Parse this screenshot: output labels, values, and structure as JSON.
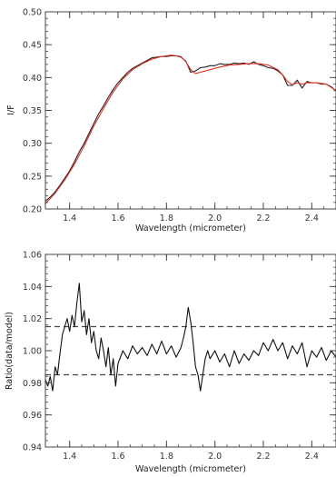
{
  "chart_data": [
    {
      "type": "line",
      "xlabel": "Wavelength (micrometer)",
      "ylabel": "I/F",
      "xlim": [
        1.3,
        2.5
      ],
      "ylim": [
        0.2,
        0.5
      ],
      "xticks": [
        "1.4",
        "1.6",
        "1.8",
        "2.0",
        "2.2",
        "2.4"
      ],
      "yticks": [
        "0.20",
        "0.25",
        "0.30",
        "0.35",
        "0.40",
        "0.45",
        "0.50"
      ],
      "grid": false,
      "series": [
        {
          "color": "#222222",
          "x": [
            1.3,
            1.32,
            1.34,
            1.36,
            1.38,
            1.4,
            1.42,
            1.44,
            1.46,
            1.48,
            1.5,
            1.52,
            1.54,
            1.56,
            1.58,
            1.6,
            1.62,
            1.64,
            1.66,
            1.68,
            1.7,
            1.72,
            1.74,
            1.76,
            1.78,
            1.8,
            1.82,
            1.84,
            1.86,
            1.88,
            1.9,
            1.92,
            1.94,
            1.96,
            1.98,
            2.0,
            2.02,
            2.04,
            2.06,
            2.08,
            2.1,
            2.12,
            2.14,
            2.16,
            2.18,
            2.2,
            2.22,
            2.24,
            2.26,
            2.28,
            2.3,
            2.32,
            2.34,
            2.36,
            2.38,
            2.4,
            2.42,
            2.44,
            2.46,
            2.48,
            2.5
          ],
          "values": [
            0.212,
            0.218,
            0.226,
            0.236,
            0.247,
            0.258,
            0.272,
            0.287,
            0.3,
            0.315,
            0.33,
            0.345,
            0.357,
            0.37,
            0.382,
            0.392,
            0.4,
            0.408,
            0.414,
            0.418,
            0.422,
            0.426,
            0.43,
            0.431,
            0.432,
            0.432,
            0.433,
            0.433,
            0.431,
            0.425,
            0.408,
            0.41,
            0.415,
            0.416,
            0.418,
            0.418,
            0.421,
            0.42,
            0.42,
            0.422,
            0.421,
            0.422,
            0.42,
            0.424,
            0.42,
            0.418,
            0.415,
            0.414,
            0.41,
            0.404,
            0.388,
            0.388,
            0.396,
            0.384,
            0.394,
            0.392,
            0.392,
            0.39,
            0.39,
            0.386,
            0.38
          ]
        },
        {
          "color": "#e0301e",
          "x": [
            1.3,
            1.34,
            1.38,
            1.42,
            1.46,
            1.5,
            1.54,
            1.58,
            1.62,
            1.66,
            1.7,
            1.74,
            1.78,
            1.82,
            1.86,
            1.88,
            1.9,
            1.92,
            1.94,
            1.98,
            2.02,
            2.06,
            2.1,
            2.14,
            2.18,
            2.22,
            2.26,
            2.28,
            2.3,
            2.32,
            2.34,
            2.36,
            2.38,
            2.42,
            2.46,
            2.5
          ],
          "values": [
            0.208,
            0.224,
            0.244,
            0.268,
            0.296,
            0.326,
            0.353,
            0.378,
            0.398,
            0.412,
            0.421,
            0.428,
            0.432,
            0.434,
            0.432,
            0.424,
            0.412,
            0.406,
            0.408,
            0.412,
            0.416,
            0.419,
            0.42,
            0.421,
            0.421,
            0.419,
            0.412,
            0.404,
            0.394,
            0.389,
            0.392,
            0.39,
            0.392,
            0.392,
            0.39,
            0.38
          ]
        }
      ]
    },
    {
      "type": "line",
      "xlabel": "Wavelength (micrometer)",
      "ylabel": "Ratio(data/model)",
      "xlim": [
        1.3,
        2.5
      ],
      "ylim": [
        0.94,
        1.06
      ],
      "xticks": [
        "1.4",
        "1.6",
        "1.8",
        "2.0",
        "2.2",
        "2.4"
      ],
      "yticks": [
        "0.94",
        "0.96",
        "0.98",
        "1.00",
        "1.02",
        "1.04",
        "1.06"
      ],
      "grid": false,
      "reference_lines": [
        1.015,
        0.985
      ],
      "series": [
        {
          "color": "#111111",
          "x": [
            1.3,
            1.31,
            1.32,
            1.33,
            1.34,
            1.35,
            1.36,
            1.37,
            1.38,
            1.39,
            1.4,
            1.41,
            1.42,
            1.43,
            1.44,
            1.45,
            1.46,
            1.47,
            1.48,
            1.49,
            1.5,
            1.51,
            1.52,
            1.53,
            1.54,
            1.55,
            1.56,
            1.57,
            1.58,
            1.59,
            1.6,
            1.62,
            1.64,
            1.66,
            1.68,
            1.7,
            1.72,
            1.74,
            1.76,
            1.78,
            1.8,
            1.82,
            1.84,
            1.86,
            1.87,
            1.88,
            1.89,
            1.9,
            1.91,
            1.92,
            1.93,
            1.94,
            1.95,
            1.96,
            1.97,
            1.98,
            2.0,
            2.02,
            2.04,
            2.06,
            2.08,
            2.1,
            2.12,
            2.14,
            2.16,
            2.18,
            2.2,
            2.22,
            2.24,
            2.26,
            2.28,
            2.3,
            2.32,
            2.34,
            2.36,
            2.38,
            2.4,
            2.42,
            2.44,
            2.46,
            2.48,
            2.5
          ],
          "values": [
            0.982,
            0.978,
            0.984,
            0.975,
            0.99,
            0.985,
            0.998,
            1.01,
            1.015,
            1.02,
            1.012,
            1.022,
            1.015,
            1.03,
            1.042,
            1.018,
            1.025,
            1.01,
            1.02,
            1.005,
            1.012,
            1.0,
            0.995,
            1.008,
            1.0,
            0.99,
            1.002,
            0.985,
            0.995,
            0.978,
            0.992,
            1.0,
            0.995,
            1.003,
            0.998,
            1.002,
            0.997,
            1.004,
            0.998,
            1.006,
            0.998,
            1.003,
            0.996,
            1.002,
            1.008,
            1.015,
            1.027,
            1.018,
            1.005,
            0.99,
            0.985,
            0.975,
            0.985,
            0.995,
            1.0,
            0.995,
            1.0,
            0.993,
            0.998,
            0.99,
            1.0,
            0.992,
            0.998,
            0.994,
            1.0,
            0.997,
            1.005,
            1.0,
            1.007,
            1.0,
            1.005,
            0.995,
            1.003,
            0.998,
            1.005,
            0.99,
            1.0,
            0.996,
            1.002,
            0.994,
            1.0,
            0.996
          ]
        }
      ]
    }
  ]
}
